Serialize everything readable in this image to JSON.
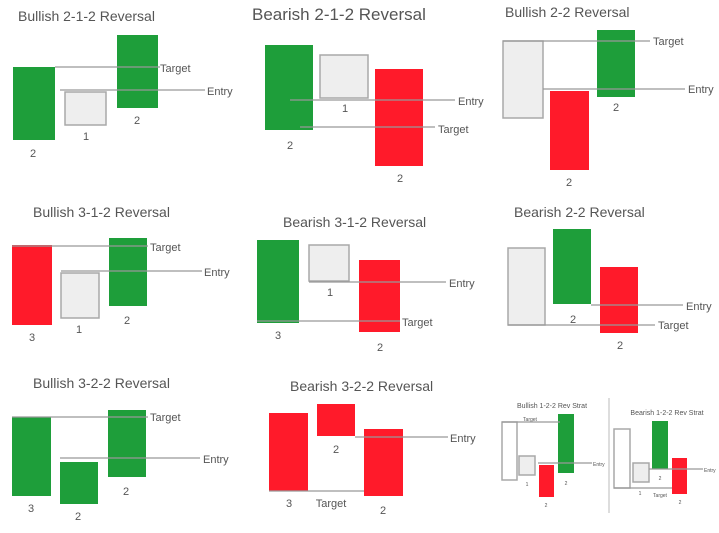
{
  "colors": {
    "bullish": "#1e9e3a",
    "bearish": "#ff1a2a",
    "inside": "#eeeeee",
    "inside_stroke": "#a8a8a8",
    "line": "#999999",
    "text": "#555555"
  },
  "panels": [
    {
      "title": "Bullish 2-1-2 Reversal",
      "candles": [
        {
          "type": "bullish",
          "label": "2"
        },
        {
          "type": "inside",
          "label": "1"
        },
        {
          "type": "bullish",
          "label": "2"
        }
      ],
      "lines": [
        {
          "label": "Target"
        },
        {
          "label": "Entry"
        }
      ]
    },
    {
      "title": "Bearish 2-1-2 Reversal",
      "candles": [
        {
          "type": "bullish",
          "label": "2"
        },
        {
          "type": "inside",
          "label": "1"
        },
        {
          "type": "bearish",
          "label": "2"
        }
      ],
      "lines": [
        {
          "label": "Entry"
        },
        {
          "label": "Target"
        }
      ]
    },
    {
      "title": "Bullish 2-2 Reversal",
      "candles": [
        {
          "type": "inside",
          "label": ""
        },
        {
          "type": "bearish",
          "label": "2"
        },
        {
          "type": "bullish",
          "label": "2"
        }
      ],
      "lines": [
        {
          "label": "Target"
        },
        {
          "label": "Entry"
        }
      ]
    },
    {
      "title": "Bullish 3-1-2 Reversal",
      "candles": [
        {
          "type": "bearish",
          "label": "3"
        },
        {
          "type": "inside",
          "label": "1"
        },
        {
          "type": "bullish",
          "label": "2"
        }
      ],
      "lines": [
        {
          "label": "Target"
        },
        {
          "label": "Entry"
        }
      ]
    },
    {
      "title": "Bearish 3-1-2 Reversal",
      "candles": [
        {
          "type": "bullish",
          "label": "3"
        },
        {
          "type": "inside",
          "label": "1"
        },
        {
          "type": "bearish",
          "label": "2"
        }
      ],
      "lines": [
        {
          "label": "Entry"
        },
        {
          "label": "Target"
        }
      ]
    },
    {
      "title": "Bearish 2-2 Reversal",
      "candles": [
        {
          "type": "inside",
          "label": ""
        },
        {
          "type": "bullish",
          "label": "2"
        },
        {
          "type": "bearish",
          "label": "2"
        }
      ],
      "lines": [
        {
          "label": "Entry"
        },
        {
          "label": "Target"
        }
      ]
    },
    {
      "title": "Bullish 3-2-2 Reversal",
      "candles": [
        {
          "type": "bullish",
          "label": "3"
        },
        {
          "type": "bullish",
          "label": "2"
        },
        {
          "type": "bullish",
          "label": "2"
        }
      ],
      "lines": [
        {
          "label": "Target"
        },
        {
          "label": "Entry"
        }
      ]
    },
    {
      "title": "Bearish 3-2-2 Reversal",
      "candles": [
        {
          "type": "bearish",
          "label": "3"
        },
        {
          "type": "bearish",
          "label": "2"
        },
        {
          "type": "bearish",
          "label": "2"
        }
      ],
      "lines": [
        {
          "label": "Entry"
        },
        {
          "label": "Target"
        }
      ]
    },
    {
      "title": "Bullish 1-2-2 Rev Strat",
      "candles": [
        {
          "type": "outline",
          "label": ""
        },
        {
          "type": "inside",
          "label": "1"
        },
        {
          "type": "bearish",
          "label": "2"
        },
        {
          "type": "bullish",
          "label": "2"
        }
      ],
      "lines": [
        {
          "label": "Target"
        },
        {
          "label": "Entry"
        }
      ]
    },
    {
      "title": "Bearish 1-2-2 Rev Strat",
      "candles": [
        {
          "type": "outline",
          "label": ""
        },
        {
          "type": "inside",
          "label": "1"
        },
        {
          "type": "bullish",
          "label": "2"
        },
        {
          "type": "bearish",
          "label": "2"
        }
      ],
      "lines": [
        {
          "label": "Entry"
        },
        {
          "label": "Target"
        }
      ]
    }
  ]
}
